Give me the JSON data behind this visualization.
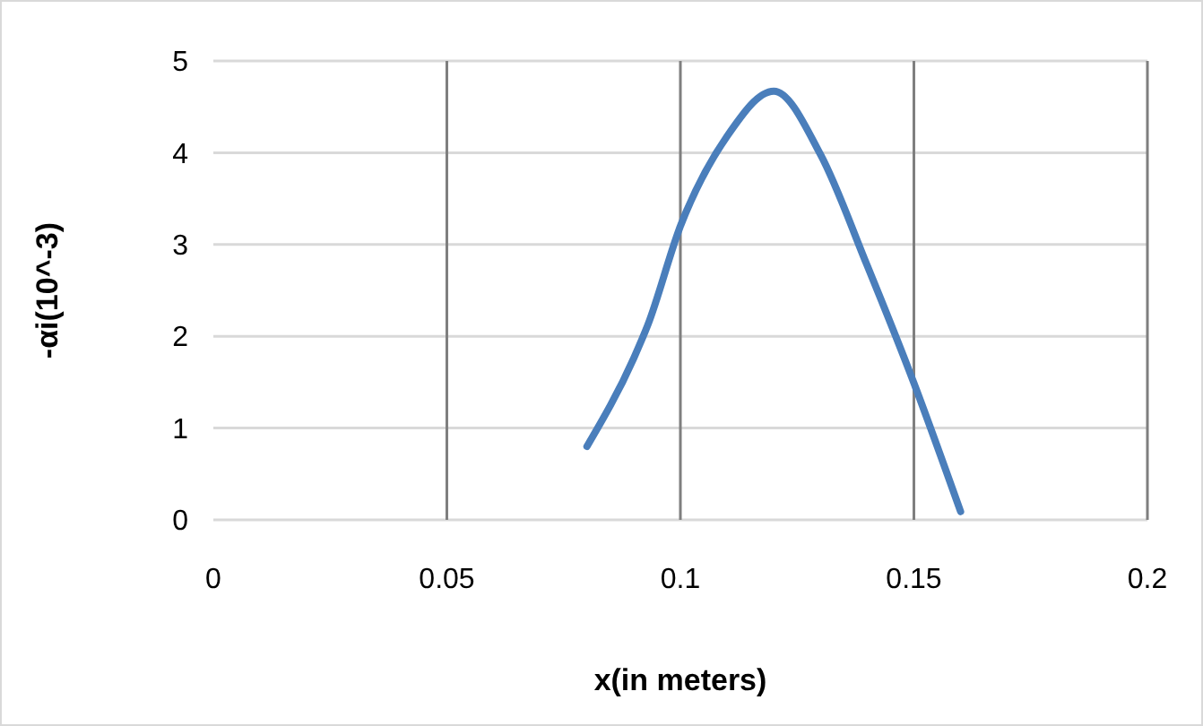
{
  "chart_data": {
    "type": "line",
    "xlabel": "x(in meters)",
    "ylabel": "-αi(10^-3)",
    "x": [
      0.08,
      0.09,
      0.093,
      0.1,
      0.11,
      0.12,
      0.13,
      0.14,
      0.15,
      0.16
    ],
    "series": [
      {
        "color": "#4a7ebb",
        "values": [
          0.8,
          1.76,
          2.12,
          3.2,
          4.18,
          4.67,
          3.98,
          2.77,
          1.49,
          0.09
        ]
      }
    ],
    "xlim": [
      0,
      0.2
    ],
    "xticks": [
      0,
      0.05,
      0.1,
      0.15,
      0.2
    ],
    "ylim": [
      0,
      5
    ],
    "yticks": [
      0,
      1,
      2,
      3,
      4,
      5
    ],
    "grid": true,
    "marker": "none",
    "line_style": "solid"
  }
}
